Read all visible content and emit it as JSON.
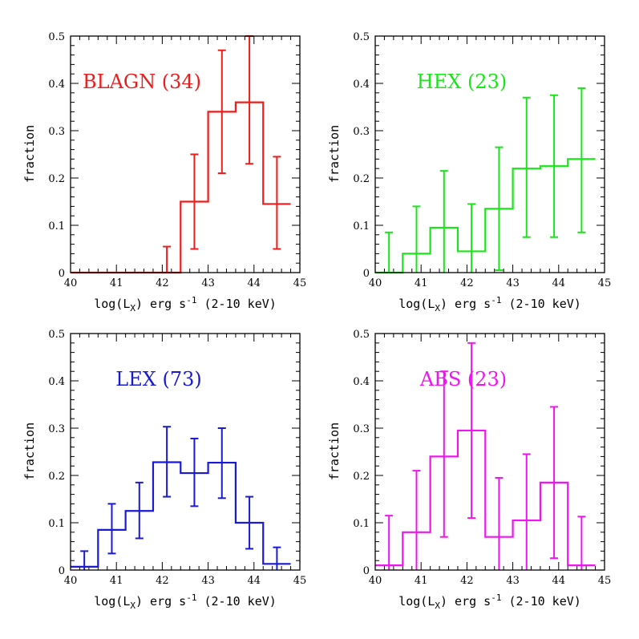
{
  "chart_data": [
    {
      "type": "histogram",
      "title": "BLAGN (34)",
      "color": "#ee1c1c",
      "xlabel": "log(L_X) erg s^-1 (2-10 keV)",
      "ylabel": "fraction",
      "xlim": [
        40,
        45
      ],
      "ylim": [
        0,
        0.5
      ],
      "xticks": [
        "40",
        "41",
        "42",
        "43",
        "44",
        "45"
      ],
      "yticks": [
        "0",
        "0.1",
        "0.2",
        "0.3",
        "0.4",
        "0.5"
      ],
      "bin_edges": [
        40.0,
        40.6,
        41.2,
        41.8,
        42.4,
        43.0,
        43.6,
        44.2,
        44.8
      ],
      "values": [
        0.0,
        0.0,
        0.0,
        0.0,
        0.15,
        0.34,
        0.36,
        0.145
      ],
      "err_low": [
        0.0,
        0.0,
        0.0,
        0.0,
        0.05,
        0.21,
        0.23,
        0.05
      ],
      "err_high": [
        0.0,
        0.0,
        0.0,
        0.055,
        0.25,
        0.47,
        0.5,
        0.245
      ],
      "grid": false,
      "legend": "none"
    },
    {
      "type": "histogram",
      "title": "HEX (23)",
      "color": "#19e619",
      "xlabel": "log(L_X) erg s^-1 (2-10 keV)",
      "ylabel": "fraction",
      "xlim": [
        40,
        45
      ],
      "ylim": [
        0,
        0.5
      ],
      "xticks": [
        "40",
        "41",
        "42",
        "43",
        "44",
        "45"
      ],
      "yticks": [
        "0",
        "0.1",
        "0.2",
        "0.3",
        "0.4",
        "0.5"
      ],
      "bin_edges": [
        40.0,
        40.6,
        41.2,
        41.8,
        42.4,
        43.0,
        43.6,
        44.2,
        44.8
      ],
      "values": [
        0.0,
        0.04,
        0.095,
        0.045,
        0.135,
        0.22,
        0.225,
        0.24
      ],
      "err_low": [
        0.0,
        0.0,
        0.0,
        0.0,
        0.005,
        0.075,
        0.075,
        0.085
      ],
      "err_high": [
        0.085,
        0.14,
        0.215,
        0.145,
        0.265,
        0.37,
        0.375,
        0.39
      ],
      "grid": false,
      "legend": "none"
    },
    {
      "type": "histogram",
      "title": "LEX (73)",
      "color": "#1a1ad6",
      "xlabel": "log(L_X) erg s^-1 (2-10 keV)",
      "ylabel": "fraction",
      "xlim": [
        40,
        45
      ],
      "ylim": [
        0,
        0.5
      ],
      "xticks": [
        "40",
        "41",
        "42",
        "43",
        "44",
        "45"
      ],
      "yticks": [
        "0",
        "0.1",
        "0.2",
        "0.3",
        "0.4",
        "0.5"
      ],
      "bin_edges": [
        40.0,
        40.6,
        41.2,
        41.8,
        42.4,
        43.0,
        43.6,
        44.2,
        44.8
      ],
      "values": [
        0.007,
        0.085,
        0.125,
        0.228,
        0.205,
        0.227,
        0.1,
        0.013
      ],
      "err_low": [
        0.0,
        0.035,
        0.067,
        0.155,
        0.135,
        0.152,
        0.045,
        0.0
      ],
      "err_high": [
        0.04,
        0.14,
        0.185,
        0.303,
        0.278,
        0.3,
        0.155,
        0.048
      ],
      "grid": false,
      "legend": "none"
    },
    {
      "type": "histogram",
      "title": "ABS (23)",
      "color": "#f014f0",
      "xlabel": "log(L_X) erg s^-1 (2-10 keV)",
      "ylabel": "fraction",
      "xlim": [
        40,
        45
      ],
      "ylim": [
        0,
        0.5
      ],
      "xticks": [
        "40",
        "41",
        "42",
        "43",
        "44",
        "45"
      ],
      "yticks": [
        "0",
        "0.1",
        "0.2",
        "0.3",
        "0.4",
        "0.5"
      ],
      "bin_edges": [
        40.0,
        40.6,
        41.2,
        41.8,
        42.4,
        43.0,
        43.6,
        44.2,
        44.8
      ],
      "values": [
        0.01,
        0.08,
        0.24,
        0.295,
        0.07,
        0.105,
        0.185,
        0.01
      ],
      "err_low": [
        0.0,
        0.0,
        0.07,
        0.11,
        0.0,
        0.0,
        0.025,
        0.0
      ],
      "err_high": [
        0.115,
        0.21,
        0.42,
        0.48,
        0.195,
        0.245,
        0.345,
        0.113
      ],
      "grid": false,
      "legend": "none"
    }
  ]
}
